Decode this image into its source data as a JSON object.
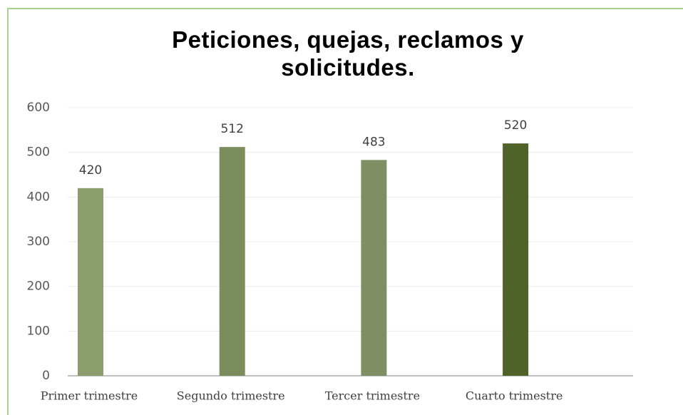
{
  "chart_data": {
    "type": "bar",
    "title": "Peticiones, quejas, reclamos y solicitudes.",
    "categories": [
      "Primer trimestre",
      "Segundo trimestre",
      "Tercer trimestre",
      "Cuarto trimestre"
    ],
    "values": [
      420,
      512,
      483,
      520
    ],
    "colors": [
      "#8c9e6c",
      "#7b8c5d",
      "#7f8f63",
      "#4f6228"
    ],
    "ylim": [
      0,
      600
    ],
    "yticks": [
      0,
      100,
      200,
      300,
      400,
      500,
      600
    ],
    "grid": true
  }
}
